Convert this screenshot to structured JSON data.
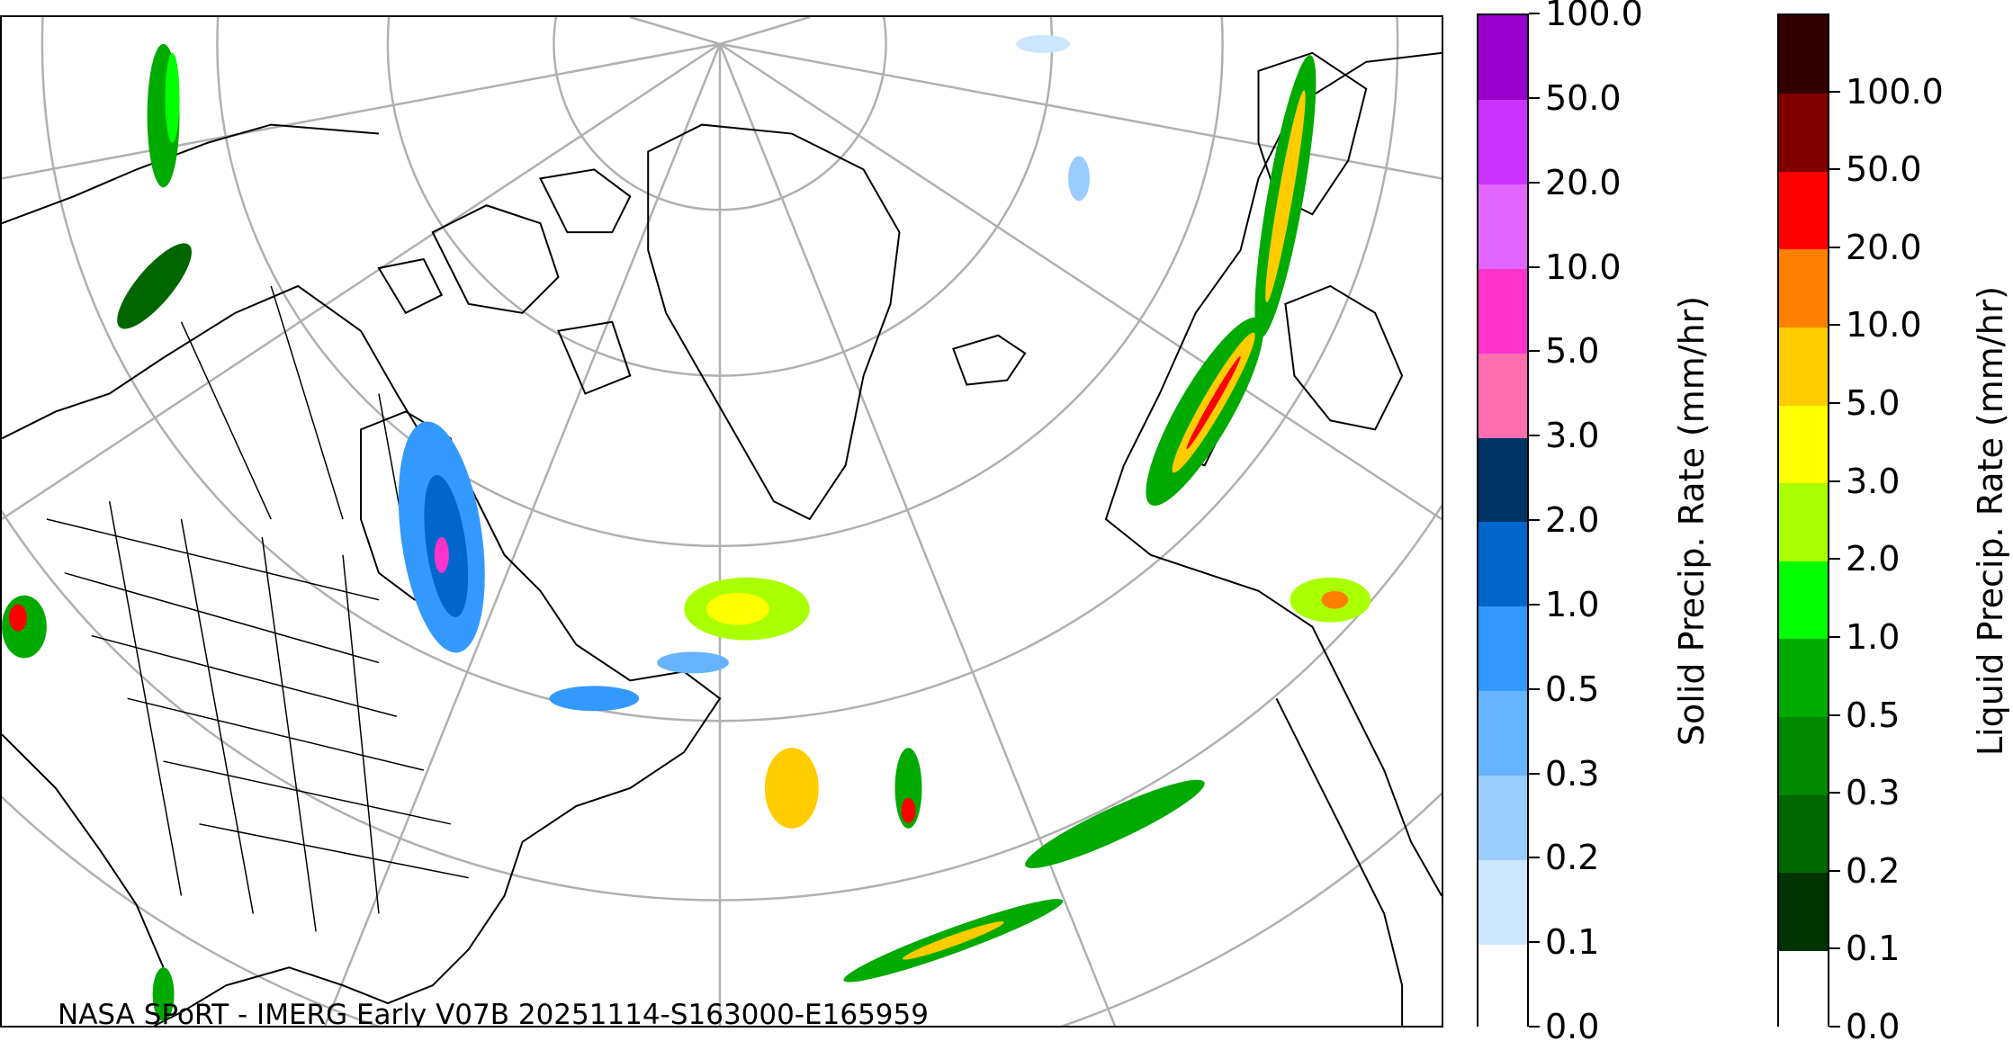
{
  "credit": "NASA SPoRT - IMERG Early V07B 20251114-S163000-E165959",
  "colorbars": {
    "solid": {
      "label": "Solid Precip. Rate (mm/hr)",
      "ticks": [
        "0.0",
        "0.1",
        "0.2",
        "0.3",
        "0.5",
        "1.0",
        "2.0",
        "3.0",
        "5.0",
        "10.0",
        "20.0",
        "50.0",
        "100.0"
      ],
      "colors": [
        "#ffffff",
        "#cce6ff",
        "#99ccff",
        "#66b3ff",
        "#3399ff",
        "#0066cc",
        "#003366",
        "#ff6fb0",
        "#ff33cc",
        "#e066ff",
        "#cc33ff",
        "#9900cc"
      ]
    },
    "liquid": {
      "label": "Liquid Precip. Rate (mm/hr)",
      "ticks": [
        "0.0",
        "0.1",
        "0.2",
        "0.3",
        "0.5",
        "1.0",
        "2.0",
        "3.0",
        "5.0",
        "10.0",
        "20.0",
        "50.0",
        "100.0"
      ],
      "colors": [
        "#ffffff",
        "#003300",
        "#006600",
        "#008800",
        "#00aa00",
        "#00ff00",
        "#aaff00",
        "#ffff00",
        "#ffcc00",
        "#ff8000",
        "#ff0000",
        "#800000",
        "#330000"
      ]
    }
  },
  "icons": [
    "precipitation-map",
    "solid-colorbar",
    "liquid-colorbar"
  ]
}
